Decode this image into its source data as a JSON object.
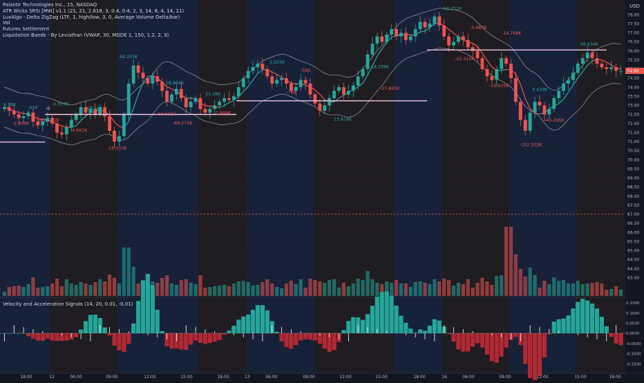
{
  "header": {
    "legend": [
      "Palantir Technologies Inc., 15, NASDAQ",
      "ATR Wicks SRSI [MW] v1.1 (21, 21, 2.618, 3, 0.4, 0.4, 2, 3, 14, 8, 4, 14, 21)",
      "LuxAlgo - Delta ZigZag (LTF, 1, high/low, 3, 0, Average Volume Delta/bar)",
      "Vol",
      "Futures Settlement",
      "Liquidation Bands - By Leviathan (VWAP, 30, MODE 1, 150, 1.2, 2, 3)"
    ],
    "currency": "USD"
  },
  "colors": {
    "bg": "#131722",
    "up": "#26a69a",
    "down": "#ef5350",
    "pink": "#f7c3e6",
    "white": "#ffffff",
    "sessionBlue": "#1c2b4c",
    "sessionBrown": "#2a2320",
    "grid": "#1e222d"
  },
  "chart_data": [
    {
      "type": "candlestick",
      "title": "Palantir Technologies Inc., 15, NASDAQ",
      "ylim": [
        62.5,
        78.5
      ],
      "y_ticks": [
        "63.50",
        "64.00",
        "64.50",
        "65.00",
        "65.50",
        "66.00",
        "66.50",
        "67.00",
        "67.50",
        "68.00",
        "68.50",
        "69.00",
        "69.50",
        "70.00",
        "70.50",
        "71.00",
        "71.50",
        "72.00",
        "72.50",
        "73.00",
        "73.50",
        "74.00",
        "74.50",
        "75.00",
        "75.50",
        "76.00",
        "76.50",
        "77.00",
        "77.50",
        "78.00"
      ],
      "current_price": "74.90",
      "close_path": [
        72.9,
        72.7,
        72.5,
        72.3,
        72.4,
        72.6,
        72.1,
        71.9,
        72.1,
        72.3,
        72.0,
        71.5,
        71.4,
        71.8,
        72.2,
        72.5,
        72.9,
        72.6,
        72.8,
        72.5,
        72.9,
        72.4,
        71.6,
        71.0,
        71.3,
        72.5,
        74.2,
        75.2,
        74.8,
        74.5,
        74.2,
        74.6,
        74.3,
        73.8,
        73.2,
        73.6,
        73.9,
        73.4,
        72.9,
        73.2,
        73.4,
        72.8,
        72.6,
        72.8,
        73.0,
        73.2,
        73.4,
        73.3,
        73.5,
        74.0,
        74.5,
        74.9,
        75.1,
        75.3,
        75.0,
        74.6,
        74.2,
        74.4,
        74.5,
        74.2,
        73.8,
        74.0,
        74.4,
        74.2,
        73.6,
        73.1,
        72.7,
        73.0,
        73.4,
        73.8,
        74.0,
        73.6,
        73.8,
        74.1,
        74.6,
        75.0,
        75.8,
        76.4,
        76.8,
        76.5,
        76.9,
        77.2,
        76.8,
        77.0,
        76.6,
        76.8,
        77.2,
        77.6,
        77.3,
        77.5,
        77.9,
        77.4,
        76.8,
        76.3,
        76.5,
        76.8,
        76.6,
        76.2,
        76.0,
        75.6,
        75.0,
        74.6,
        74.4,
        75.0,
        75.6,
        75.3,
        74.5,
        73.2,
        72.2,
        71.6,
        72.6,
        73.2,
        73.0,
        72.5,
        72.8,
        73.4,
        73.8,
        74.2,
        74.4,
        74.8,
        75.3,
        75.6,
        75.9,
        75.6,
        75.3,
        75.1,
        75.0,
        75.1,
        74.9,
        74.9
      ],
      "annotations": [
        {
          "text": "5.28K",
          "price": 72.95,
          "color": "#26a69a"
        },
        {
          "text": "-434",
          "price": 72.8,
          "color": "#26a69a"
        },
        {
          "text": "-0",
          "price": 72.75,
          "color": "#d1d4dc"
        },
        {
          "text": "-4.937K",
          "price": 73.0,
          "color": "#26a69a"
        },
        {
          "text": "4.621K",
          "price": 72.75,
          "color": "#26a69a"
        },
        {
          "text": "-2.906K",
          "price": 71.92,
          "color": "#ef5350"
        },
        {
          "text": "-281",
          "price": 72.1,
          "color": "#ef5350"
        },
        {
          "text": "-127",
          "price": 72.1,
          "color": "#ef5350"
        },
        {
          "text": "-4.662K",
          "price": 71.55,
          "color": "#ef5350"
        },
        {
          "text": "-15.037K",
          "price": 70.55,
          "color": "#ef5350"
        },
        {
          "text": "69.203K",
          "price": 75.6,
          "color": "#26a69a"
        },
        {
          "text": "28.864K",
          "price": 74.15,
          "color": "#26a69a"
        },
        {
          "text": "-10.661K",
          "price": 72.45,
          "color": "#ef5350"
        },
        {
          "text": "-68.271K",
          "price": 71.95,
          "color": "#ef5350"
        },
        {
          "text": "33.28K",
          "price": 73.55,
          "color": "#26a69a"
        },
        {
          "text": "-1.899K",
          "price": 72.5,
          "color": "#ef5350"
        },
        {
          "text": "2.555K",
          "price": 75.3,
          "color": "#26a69a"
        },
        {
          "text": "-590",
          "price": 74.85,
          "color": "#ef5350"
        },
        {
          "text": "-708",
          "price": 73.65,
          "color": "#ef5350"
        },
        {
          "text": "13.614K",
          "price": 72.15,
          "color": "#26a69a"
        },
        {
          "text": "18.336K",
          "price": 75.05,
          "color": "#26a69a"
        },
        {
          "text": "-27.695K",
          "price": 73.85,
          "color": "#ef5350"
        },
        {
          "text": "52.251K",
          "price": 78.25,
          "color": "#26a69a"
        },
        {
          "text": "-5.987K",
          "price": 77.2,
          "color": "#ef5350"
        },
        {
          "text": "-14.768K",
          "price": 76.9,
          "color": "#ef5350"
        },
        {
          "text": "-23.312K",
          "price": 75.5,
          "color": "#ef5350"
        },
        {
          "text": "-25.635K",
          "price": 74.0,
          "color": "#ef5350"
        },
        {
          "text": "3.429K",
          "price": 73.8,
          "color": "#26a69a"
        },
        {
          "text": "-40.295K",
          "price": 72.1,
          "color": "#ef5350"
        },
        {
          "text": "-152.202K",
          "price": 70.75,
          "color": "#ef5350"
        },
        {
          "text": "96.634K",
          "price": 76.3,
          "color": "#26a69a"
        }
      ],
      "liquidation_lines": [
        {
          "x0": 0.0,
          "x1": 0.072,
          "price": 70.98
        },
        {
          "x0": 0.072,
          "x1": 0.378,
          "price": 72.5
        },
        {
          "x0": 0.378,
          "x1": 0.683,
          "price": 73.25
        },
        {
          "x0": 0.683,
          "x1": 0.97,
          "price": 76.05
        }
      ],
      "futures_settlement_price": 67.0
    },
    {
      "type": "bar",
      "title": "Vol",
      "description": "volume histogram"
    },
    {
      "type": "bar",
      "title": "Velocity and Acceleration Signals (14, 20, 0.01, -0.01)",
      "y_ticks": [
        "0.1500",
        "0.1000",
        "0.0500",
        "0.0000",
        "-0.0500",
        "-0.1000",
        "-0.1500"
      ],
      "ylim": [
        -0.17,
        0.17
      ]
    }
  ],
  "x_axis": {
    "labels": [
      "18:00",
      "12",
      "06:00",
      "09:00",
      "12:00",
      "15:00",
      "18:00",
      "13",
      "06:00",
      "09:00",
      "12:00",
      "15:00",
      "18:00",
      "16",
      "06:00",
      "09:00",
      "12:00",
      "15:00",
      "18:00"
    ]
  }
}
